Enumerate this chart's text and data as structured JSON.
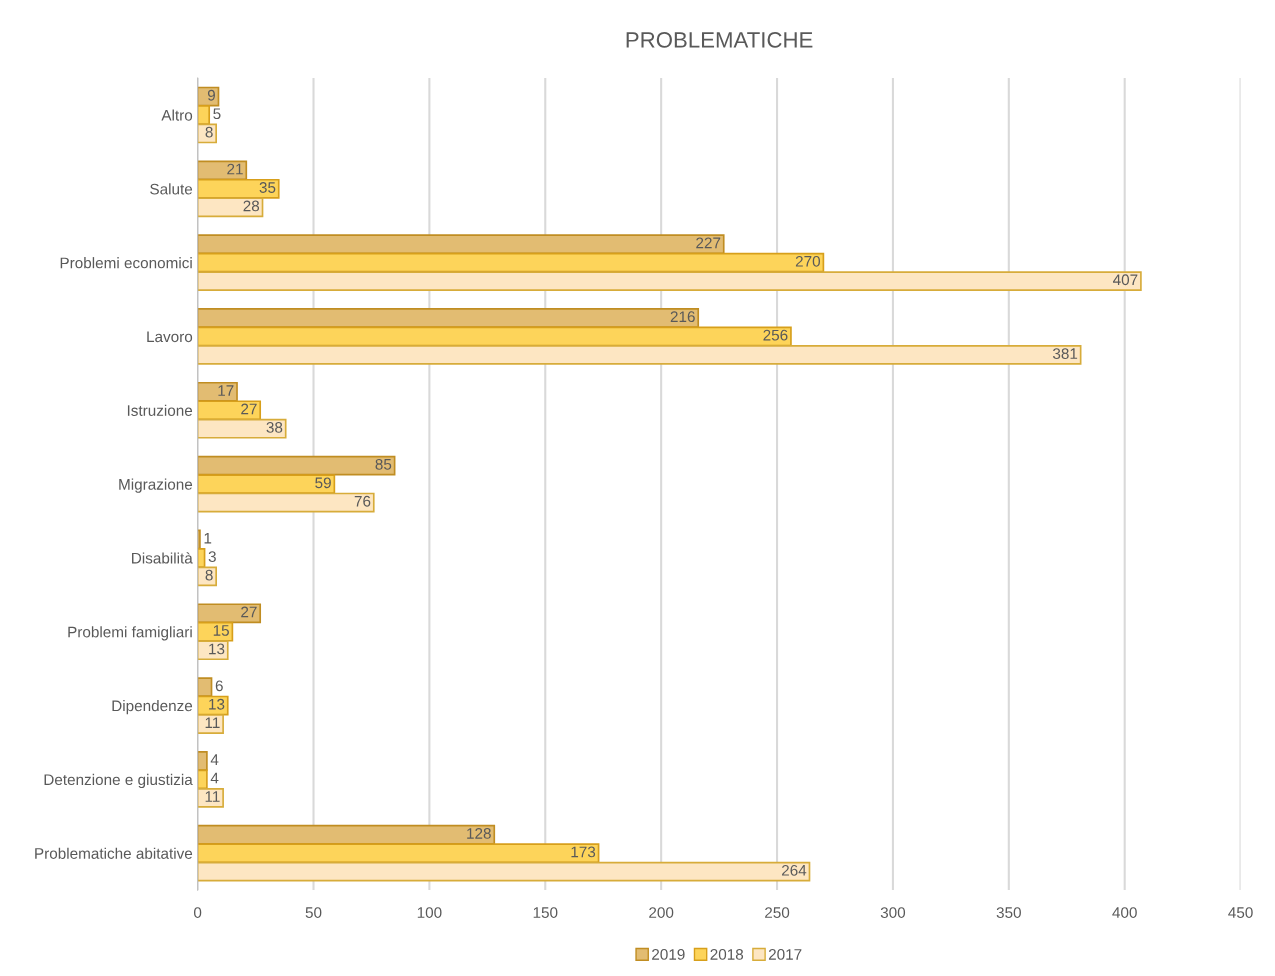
{
  "chart_data": {
    "type": "bar",
    "orientation": "horizontal",
    "title": "PROBLEMATICHE",
    "categories": [
      "Altro",
      "Salute",
      "Problemi economici",
      "Lavoro",
      "Istruzione",
      "Migrazione",
      "Disabilità",
      "Problemi famigliari",
      "Dipendenze",
      "Detenzione e giustizia",
      "Problematiche abitative"
    ],
    "series": [
      {
        "name": "2019",
        "color": "#e2bc72",
        "values": [
          9,
          21,
          227,
          216,
          17,
          85,
          1,
          27,
          6,
          4,
          128
        ]
      },
      {
        "name": "2018",
        "color": "#fdd45a",
        "values": [
          5,
          35,
          270,
          256,
          27,
          59,
          3,
          15,
          13,
          4,
          173
        ]
      },
      {
        "name": "2017",
        "color": "#fde6c2",
        "values": [
          8,
          28,
          407,
          381,
          38,
          76,
          8,
          13,
          11,
          11,
          264
        ]
      }
    ],
    "xlim": [
      0,
      450
    ],
    "xticks": [
      0,
      50,
      100,
      150,
      200,
      250,
      300,
      350,
      400,
      450
    ],
    "grid": "x",
    "legend": "bottom",
    "data_labels": true
  }
}
